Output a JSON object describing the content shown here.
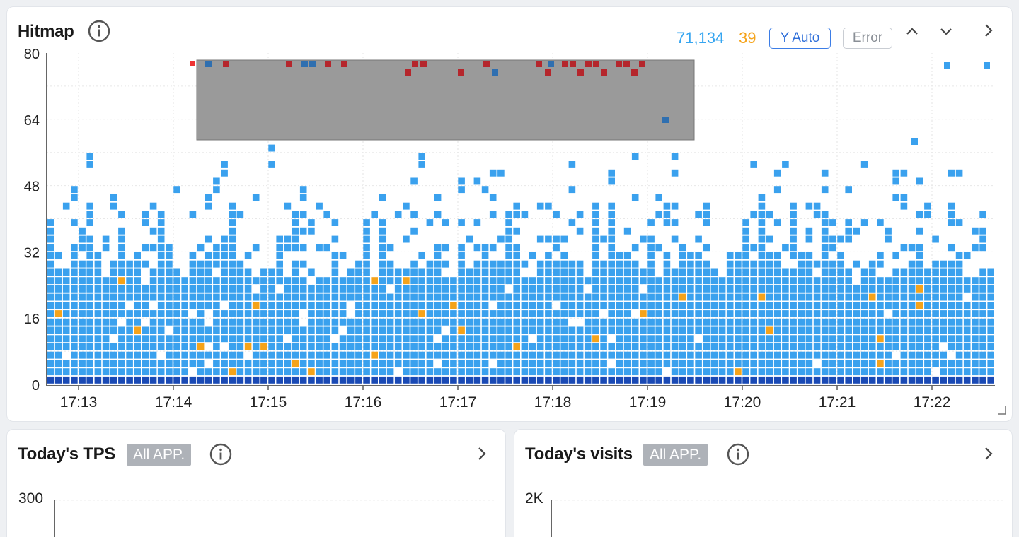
{
  "hitmap": {
    "title": "Hitmap",
    "count_total": "71,134",
    "count_error": "39",
    "y_auto_label": "Y Auto",
    "error_label": "Error",
    "colors": {
      "normal": "#3aa1ee",
      "base": "#1a4ab5",
      "error": "#f5a31a",
      "selection": "#9a9a9a",
      "sel_blue": "#2f6fb0",
      "sel_red": "#b5262c"
    }
  },
  "chart_data": {
    "type": "heatmap",
    "title": "Hitmap",
    "y_ticks": [
      "0",
      "16",
      "32",
      "48",
      "64",
      "80"
    ],
    "ylim": [
      0,
      80
    ],
    "x_ticks": [
      "17:13",
      "17:14",
      "17:15",
      "17:16",
      "17:17",
      "17:18",
      "17:19",
      "17:20",
      "17:21",
      "17:22"
    ],
    "grid": true,
    "selection": {
      "x_start": "17:14",
      "x_end": "17:19",
      "y_start": 60,
      "y_end": 80
    }
  },
  "tps": {
    "title": "Today's TPS",
    "badge": "All APP.",
    "y_top": "300"
  },
  "visits": {
    "title": "Today's visits",
    "badge": "All APP.",
    "y_top": "2K"
  }
}
